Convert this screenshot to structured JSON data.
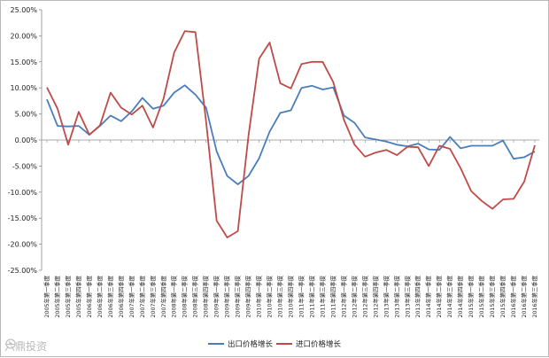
{
  "chart_data": {
    "type": "line",
    "ylim": [
      -25,
      25
    ],
    "y_ticks": [
      "25.00%",
      "20.00%",
      "15.00%",
      "10.00%",
      "5.00%",
      "0.00%",
      "-5.00%",
      "-10.00%",
      "-15.00%",
      "-20.00%",
      "-25.00%"
    ],
    "y_tick_values": [
      25,
      20,
      15,
      10,
      5,
      0,
      -5,
      -10,
      -15,
      -20,
      -25
    ],
    "grid": false,
    "legend_position": "bottom",
    "categories": [
      "2005年第一季度",
      "2005年第二季度",
      "2005年第三季度",
      "2005年第四季度",
      "2006年第一季度",
      "2006年第二季度",
      "2006年第三季度",
      "2006年第四季度",
      "2007年第一季度",
      "2007年第二季度",
      "2007年第三季度",
      "2007年第四季度",
      "2008年第一季度",
      "2008年第二季度",
      "2008年第三季度",
      "2008年第四季度",
      "2009年第一季度",
      "2009年第二季度",
      "2009年第三季度",
      "2009年第四季度",
      "2010年第一季度",
      "2010年第二季度",
      "2010年第三季度",
      "2010年第四季度",
      "2011年第一季度",
      "2011年第二季度",
      "2011年第三季度",
      "2011年第四季度",
      "2012年第一季度",
      "2012年第二季度",
      "2012年第三季度",
      "2012年第四季度",
      "2013年第一季度",
      "2013年第二季度",
      "2013年第三季度",
      "2013年第四季度",
      "2014年第一季度",
      "2014年第二季度",
      "2014年第三季度",
      "2014年第四季度",
      "2015年第一季度",
      "2015年第二季度",
      "2015年第三季度",
      "2015年第四季度",
      "2016年第一季度",
      "2016年第二季度",
      "2016年第三季度"
    ],
    "series": [
      {
        "name": "出口价格增长",
        "color": "#4a7ebb",
        "values": [
          7.8,
          2.7,
          2.6,
          2.7,
          1.0,
          2.7,
          4.7,
          3.6,
          5.5,
          8.1,
          6.0,
          6.6,
          9.1,
          10.5,
          8.7,
          6.2,
          -2.2,
          -6.9,
          -8.5,
          -6.9,
          -3.5,
          1.6,
          5.2,
          5.7,
          10.0,
          10.4,
          9.7,
          10.1,
          4.7,
          3.3,
          0.5,
          0.1,
          -0.3,
          -0.9,
          -1.2,
          -0.7,
          -1.8,
          -1.9,
          0.6,
          -1.6,
          -1.1,
          -1.1,
          -1.1,
          -0.1,
          -3.6,
          -3.3,
          -2.2
        ]
      },
      {
        "name": "进口价格增长",
        "color": "#be4b48",
        "values": [
          10.1,
          6.0,
          -0.9,
          5.4,
          1.0,
          2.8,
          9.1,
          6.2,
          4.9,
          6.6,
          2.4,
          8.0,
          16.8,
          20.9,
          20.7,
          3.6,
          -15.5,
          -18.7,
          -17.5,
          0.8,
          15.6,
          18.7,
          10.9,
          9.9,
          14.6,
          15.0,
          15.0,
          11.1,
          3.9,
          -0.9,
          -3.2,
          -2.4,
          -1.9,
          -2.9,
          -1.3,
          -1.4,
          -5.0,
          -1.1,
          -1.7,
          -5.4,
          -9.8,
          -11.7,
          -13.2,
          -11.4,
          -11.3,
          -8.0,
          -1.0
        ]
      }
    ]
  },
  "watermark": "六鼎投资"
}
